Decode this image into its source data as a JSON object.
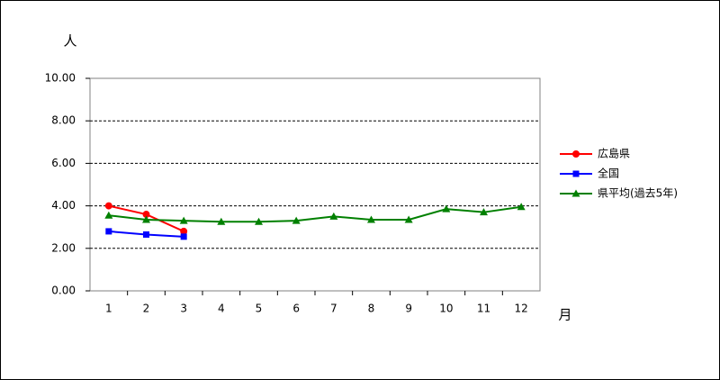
{
  "chart_data": {
    "type": "line",
    "y_label": "人",
    "x_label": "月",
    "categories": [
      "1",
      "2",
      "3",
      "4",
      "5",
      "6",
      "7",
      "8",
      "9",
      "10",
      "11",
      "12"
    ],
    "series": [
      {
        "name": "広島県",
        "color": "#ff0000",
        "marker": "circle",
        "values": [
          4.0,
          3.6,
          2.8,
          null,
          null,
          null,
          null,
          null,
          null,
          null,
          null,
          null
        ]
      },
      {
        "name": "全国",
        "color": "#0000ff",
        "marker": "square",
        "values": [
          2.8,
          2.65,
          2.55,
          null,
          null,
          null,
          null,
          null,
          null,
          null,
          null,
          null
        ]
      },
      {
        "name": "県平均(過去5年)",
        "color": "#008000",
        "marker": "triangle",
        "values": [
          3.55,
          3.35,
          3.3,
          3.25,
          3.25,
          3.3,
          3.5,
          3.35,
          3.35,
          3.85,
          3.7,
          3.95
        ]
      }
    ],
    "ylim": [
      0,
      10
    ],
    "yticks": [
      {
        "value": 0,
        "label": "0.00"
      },
      {
        "value": 2,
        "label": "2.00"
      },
      {
        "value": 4,
        "label": "4.00"
      },
      {
        "value": 6,
        "label": "6.00"
      },
      {
        "value": 8,
        "label": "8.00"
      },
      {
        "value": 10,
        "label": "10.00"
      }
    ],
    "grid": true,
    "legend": "right"
  }
}
